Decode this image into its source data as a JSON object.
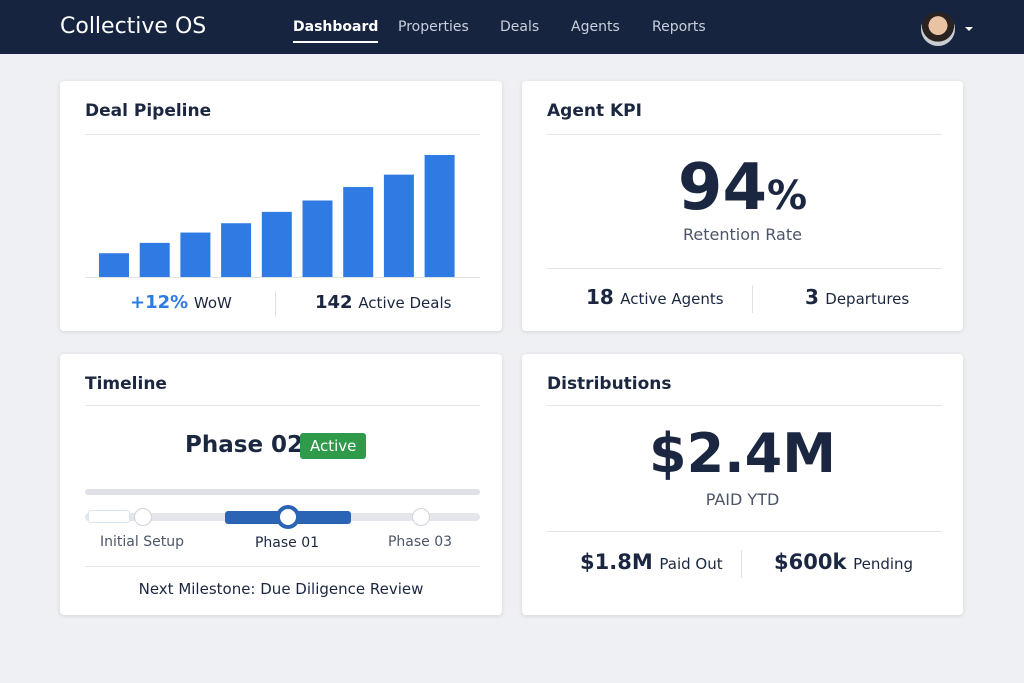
{
  "header": {
    "title": "Collective OS",
    "nav": [
      "Dashboard",
      "Properties",
      "Deals",
      "Agents",
      "Reports"
    ],
    "active_nav": 0
  },
  "pipeline": {
    "title": "Deal Pipeline",
    "chart": {
      "type": "bar",
      "values": [
        23,
        33,
        43,
        52,
        63,
        74,
        87,
        99,
        118
      ],
      "color": "#2f7be3"
    },
    "growth": "+12%",
    "growth_label": "WoW",
    "active_deals": "142",
    "active_deals_label": "Active Deals"
  },
  "agent_kpi": {
    "title": "Agent KPI",
    "value": "94",
    "unit": "%",
    "label": "Retention Rate",
    "active_agents": "18",
    "active_agents_label": "Active Agents",
    "departures": "3",
    "departures_label": "Departures"
  },
  "timeline": {
    "title": "Timeline",
    "phase": "Phase 02",
    "status": "Active",
    "steps": [
      "Initial Setup",
      "Phase 01",
      "Phase 03"
    ],
    "next_milestone": "Next Milestone: Due Diligence Review"
  },
  "distributions": {
    "title": "Distributions",
    "value": "$2.4M",
    "label": "PAID YTD",
    "paid_out": "$1.8M",
    "paid_out_label": "Paid Out",
    "pending": "$600k",
    "pending_label": "Pending"
  }
}
